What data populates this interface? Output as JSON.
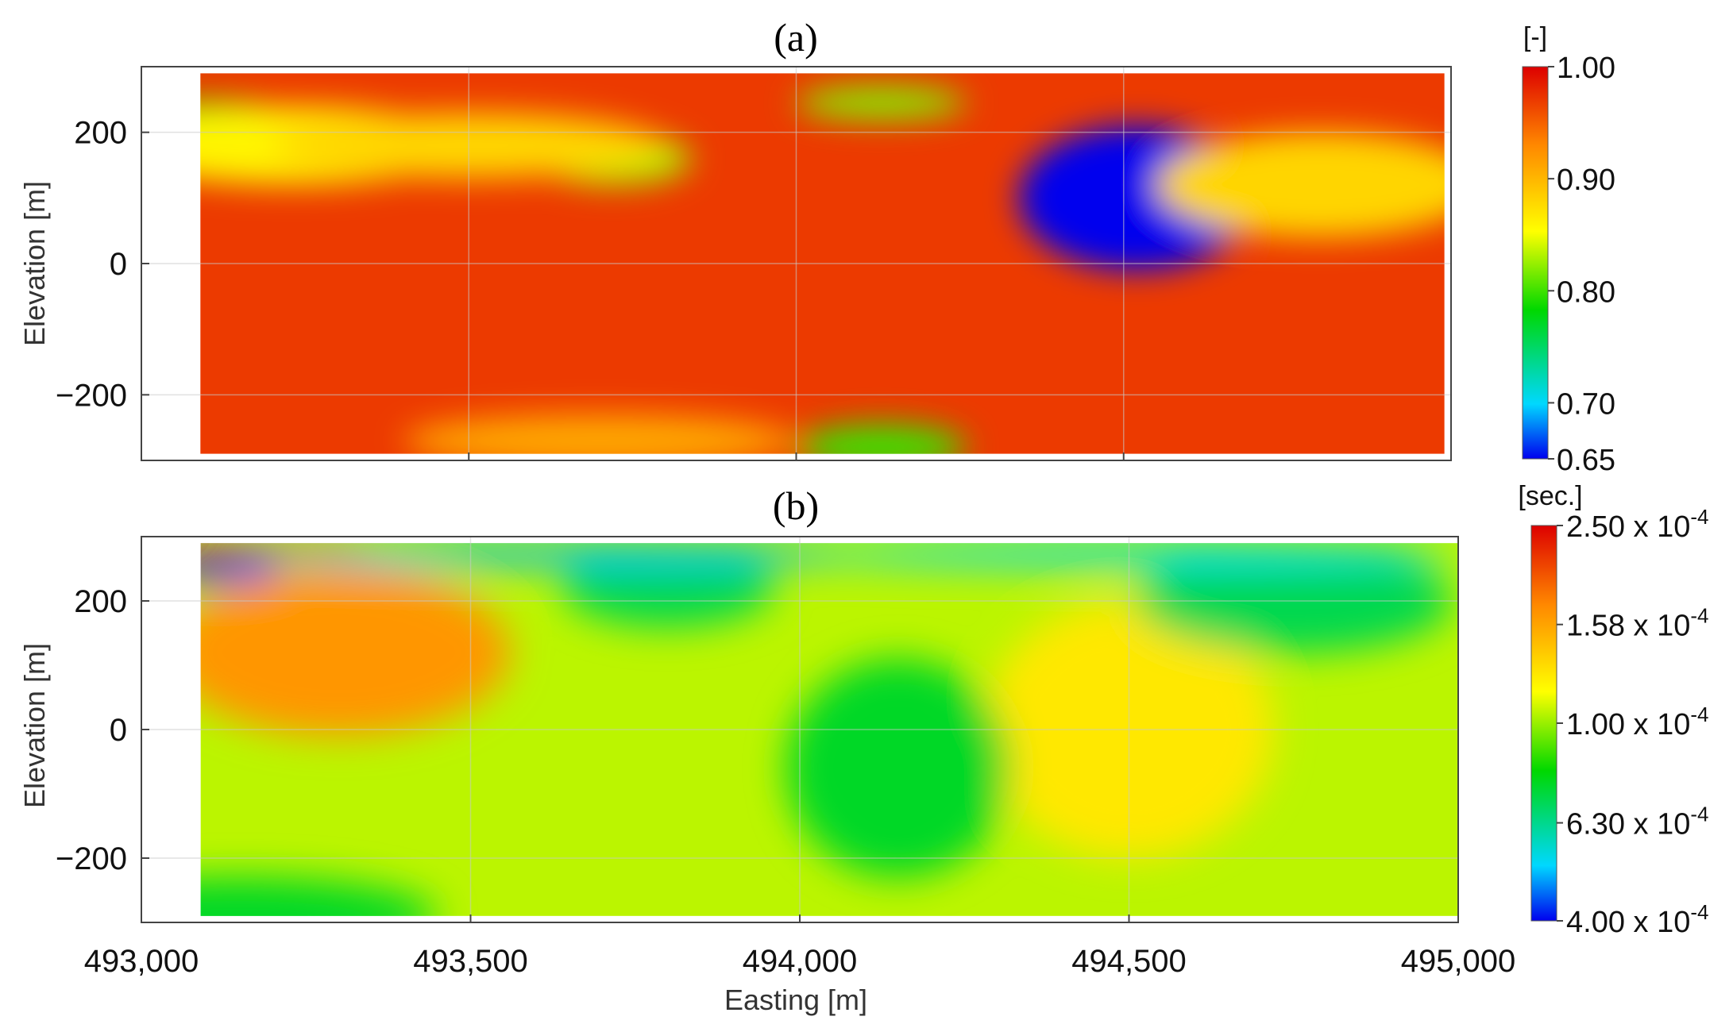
{
  "chart_data": [
    {
      "type": "heatmap",
      "panel_label": "(a)",
      "ylabel": "Elevation [m]",
      "xlabel": "",
      "xlim": [
        493000,
        495000
      ],
      "ylim": [
        -300,
        300
      ],
      "data_extent_x": [
        493090,
        494990
      ],
      "data_extent_y": [
        -290,
        290
      ],
      "xticks": [
        493000,
        493500,
        494000,
        494500,
        495000
      ],
      "xtick_labels": [
        "",
        "",
        "",
        "",
        ""
      ],
      "yticks": [
        200,
        0,
        -200
      ],
      "ytick_labels": [
        "200",
        "0",
        "−200"
      ],
      "grid": true,
      "background_value": 0.97,
      "features": [
        {
          "x": 494520,
          "y": 100,
          "value": 0.65,
          "radius_x": 180,
          "radius_y": 110,
          "description_value_note": "minimum"
        },
        {
          "x": 493100,
          "y": 190,
          "value": 0.79,
          "radius_x": 190,
          "radius_y": 60
        },
        {
          "x": 493230,
          "y": 180,
          "value": 0.86,
          "radius_x": 280,
          "radius_y": 60
        },
        {
          "x": 493720,
          "y": 160,
          "value": 0.83,
          "radius_x": 120,
          "radius_y": 40
        },
        {
          "x": 494130,
          "y": 245,
          "value": 0.82,
          "radius_x": 130,
          "radius_y": 25
        },
        {
          "x": 494130,
          "y": -280,
          "value": 0.8,
          "radius_x": 130,
          "radius_y": 35
        },
        {
          "x": 493500,
          "y": 180,
          "value": 0.88,
          "radius_x": 300,
          "radius_y": 50
        },
        {
          "x": 494800,
          "y": 120,
          "value": 0.88,
          "radius_x": 250,
          "radius_y": 80
        },
        {
          "x": 493700,
          "y": -270,
          "value": 0.91,
          "radius_x": 300,
          "radius_y": 40
        }
      ],
      "colorbar": {
        "unit": "[-]",
        "min": 0.65,
        "max": 1.0,
        "tick_values": [
          1.0,
          0.9,
          0.8,
          0.7,
          0.65
        ],
        "tick_labels": [
          "1.00",
          "0.90",
          "0.80",
          "0.70",
          "0.65"
        ],
        "scale": "linear",
        "colormap": "jet-like"
      }
    },
    {
      "type": "heatmap",
      "panel_label": "(b)",
      "ylabel": "Elevation [m]",
      "xlabel": "Easting [m]",
      "xlim": [
        493000,
        495000
      ],
      "ylim": [
        -300,
        300
      ],
      "data_extent_x": [
        493090,
        495000
      ],
      "data_extent_y": [
        -290,
        290
      ],
      "xticks": [
        493000,
        493500,
        494000,
        494500,
        495000
      ],
      "xtick_labels": [
        "493,000",
        "493,500",
        "494,000",
        "494,500",
        "495,000"
      ],
      "yticks": [
        200,
        0,
        -200
      ],
      "ytick_labels": [
        "200",
        "0",
        "−200"
      ],
      "grid": true,
      "background_value": 0.000105,
      "features": [
        {
          "x": 493300,
          "y": 120,
          "value": 0.000165,
          "radius_x": 260,
          "radius_y": 130
        },
        {
          "x": 494500,
          "y": 0,
          "value": 0.000125,
          "radius_x": 220,
          "radius_y": 200
        },
        {
          "x": 494150,
          "y": -60,
          "value": 7.5e-05,
          "radius_x": 170,
          "radius_y": 170
        },
        {
          "x": 493150,
          "y": -290,
          "value": 7.5e-05,
          "radius_x": 300,
          "radius_y": 60
        },
        {
          "x": 494750,
          "y": 200,
          "value": 7e-05,
          "radius_x": 240,
          "radius_y": 80
        },
        {
          "x": 493800,
          "y": 220,
          "value": 7e-05,
          "radius_x": 160,
          "radius_y": 60
        },
        {
          "x": 493120,
          "y": 250,
          "value": 4e-05,
          "radius_x": 90,
          "radius_y": 20
        },
        {
          "x": 493650,
          "y": 272,
          "value": 5e-05,
          "radius_x": 500,
          "radius_y": 18
        },
        {
          "x": 494500,
          "y": 272,
          "value": 5.2e-05,
          "radius_x": 500,
          "radius_y": 18
        },
        {
          "x": 493200,
          "y": 287,
          "value": 0.00025,
          "radius_x": 150,
          "radius_y": 8
        }
      ],
      "colorbar": {
        "unit": "[sec.]",
        "min": 4e-05,
        "max": 0.00025,
        "tick_values": [
          0.00025,
          0.000158,
          0.0001,
          6.3e-05,
          4e-05
        ],
        "tick_labels": [
          "2.50 x 10",
          "1.58 x 10",
          "1.00 x 10",
          "6.30 x 10",
          "4.00 x 10"
        ],
        "tick_exponent": "-4",
        "scale": "log",
        "colormap": "jet-like"
      }
    }
  ]
}
